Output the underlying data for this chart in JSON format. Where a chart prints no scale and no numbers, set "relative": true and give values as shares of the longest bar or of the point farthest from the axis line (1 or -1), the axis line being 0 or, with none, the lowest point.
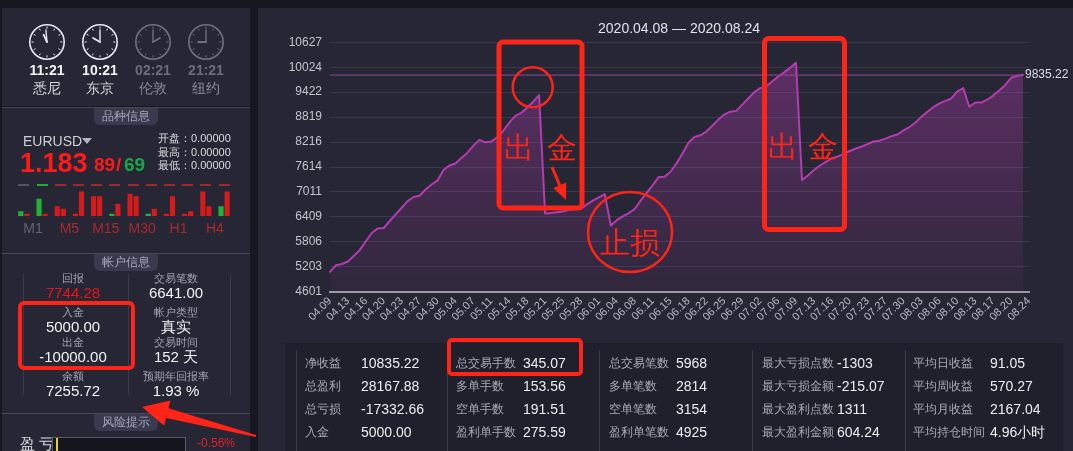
{
  "chart_data": [
    {
      "type": "area",
      "title": "2020.04.08 — 2020.08.24",
      "categories": [
        "04.09",
        null,
        null,
        "04.13",
        null,
        null,
        "04.16",
        null,
        null,
        "04.20",
        null,
        null,
        "04.23",
        null,
        null,
        "04.27",
        null,
        null,
        "04.30",
        null,
        null,
        "05.04",
        null,
        null,
        "05.07",
        null,
        null,
        "05.11",
        null,
        null,
        "05.14",
        null,
        null,
        "05.18",
        null,
        null,
        "05.21",
        null,
        null,
        "05.25",
        null,
        null,
        "05.28",
        null,
        null,
        "06.01",
        null,
        null,
        "06.04",
        null,
        null,
        "06.08",
        null,
        null,
        "06.11",
        null,
        null,
        "06.15",
        null,
        null,
        "06.18",
        null,
        null,
        "06.22",
        null,
        null,
        "06.25",
        null,
        null,
        "06.29",
        null,
        null,
        "07.02",
        null,
        null,
        "07.06",
        null,
        null,
        "07.09",
        null,
        null,
        "07.13",
        null,
        null,
        "07.16",
        null,
        null,
        "07.20",
        null,
        null,
        "07.23",
        null,
        null,
        "07.27",
        null,
        null,
        "07.30",
        null,
        null,
        "08.03",
        null,
        null,
        "08.06",
        null,
        null,
        "08.10",
        null,
        null,
        "08.13",
        null,
        null,
        "08.17",
        null,
        null,
        "08.20",
        null,
        null,
        "08.24"
      ],
      "values": [
        5080,
        5240,
        5270,
        5330,
        5470,
        5610,
        5820,
        6020,
        6130,
        6140,
        6310,
        6470,
        6630,
        6790,
        6890,
        6920,
        7070,
        7190,
        7290,
        7540,
        7650,
        7700,
        7830,
        7960,
        8130,
        8270,
        8210,
        8230,
        8330,
        8490,
        8680,
        8850,
        8920,
        9050,
        9190,
        9350,
        6490,
        6500,
        6520,
        6540,
        6580,
        6600,
        6600,
        6710,
        6800,
        6880,
        6960,
        6200,
        6330,
        6420,
        6500,
        6600,
        6800,
        6990,
        7170,
        7370,
        7380,
        7500,
        7700,
        7940,
        8200,
        8340,
        8380,
        8470,
        8610,
        8760,
        8880,
        8950,
        8970,
        9120,
        9270,
        9420,
        9520,
        9560,
        9680,
        9800,
        9900,
        10010,
        10130,
        7300,
        7410,
        7540,
        7650,
        7740,
        7820,
        7870,
        7930,
        8000,
        8060,
        8110,
        8170,
        8230,
        8250,
        8300,
        8360,
        8400,
        8500,
        8580,
        8690,
        8830,
        8950,
        9060,
        9150,
        9210,
        9270,
        9440,
        9520,
        9070,
        9170,
        9170,
        9240,
        9340,
        9460,
        9590,
        9770,
        9820,
        9840,
        null
      ],
      "color": "#b43cb0",
      "ylim": [
        4601,
        10627
      ],
      "yticks": [
        4601,
        5203,
        5806,
        6409,
        7011,
        7614,
        8216,
        8819,
        9422,
        10024,
        10627
      ],
      "grid": "y",
      "ref_lines": [
        {
          "axis": "y",
          "value": 9835.22,
          "label": "9835.22",
          "color": "#96489a"
        }
      ],
      "annotations": [
        "出金",
        "止损",
        "出金"
      ]
    },
    {
      "type": "other",
      "annotations": [
        "11:21",
        "悉尼",
        "10:21",
        "东京",
        "02:21",
        "伦敦",
        "21:21",
        "纽约",
        "品种信息",
        "EURUSD",
        "1.183",
        "89",
        "/",
        "69",
        "开盘：0.00000",
        "最高：0.00000",
        "最低：0.00000",
        "帐户信息",
        "回报",
        "7744.28",
        "交易笔数",
        "6641.00",
        "入金",
        "5000.00",
        "帐户类型",
        "真实",
        "出金",
        "-10000.00",
        "交易时间",
        "152 天",
        "余额",
        "7255.72",
        "预期年回报率",
        "1.93 %",
        "风险提示",
        "盈 亏",
        "-0.56%"
      ]
    },
    {
      "type": "bar",
      "relative": true,
      "categories": [
        null,
        null,
        "M1",
        null,
        null,
        null,
        null,
        null,
        "M5",
        null,
        null,
        null,
        null,
        null,
        "M15",
        null,
        null,
        null,
        null,
        null,
        "M30",
        null,
        null,
        null,
        null,
        null,
        "H1",
        null,
        null,
        null,
        null,
        null,
        "H4",
        null,
        null,
        null
      ],
      "values": [
        0.2,
        0.1,
        null,
        0.7,
        0.1,
        null,
        0.4,
        0.3,
        null,
        0.1,
        1,
        null,
        0.8,
        0.8,
        null,
        0.1,
        0.5,
        null,
        0.9,
        0.8,
        null,
        0.1,
        0.3,
        null,
        0.1,
        0.8,
        null,
        0.1,
        0.2,
        null,
        1,
        0.4,
        null,
        0.4,
        1,
        null
      ],
      "colors": [
        "#22b23c",
        "#d41c1c",
        null,
        "#22b23c",
        "#d41c1c",
        null,
        "#d41c1c",
        "#d41c1c",
        null,
        "#d41c1c",
        "#d41c1c",
        null,
        "#d41c1c",
        "#d41c1c",
        null,
        "#22b23c",
        "#d41c1c",
        null,
        "#d41c1c",
        "#d41c1c",
        null,
        "#22b23c",
        "#d41c1c",
        null,
        "#d41c1c",
        "#d41c1c",
        null,
        "#d41c1c",
        "#d41c1c",
        null,
        "#d41c1c",
        "#d41c1c",
        null,
        "#22b23c",
        "#d41c1c",
        null
      ]
    },
    {
      "type": "other",
      "annotations": [
        "净收益",
        "10835.22",
        "总盈利",
        "28167.88",
        "总亏损",
        "-17332.66",
        "入金",
        "5000.00",
        "总交易手数",
        "345.07",
        "多单手数",
        "153.56",
        "空单手数",
        "191.51",
        "盈利单手数",
        "275.59",
        "总交易笔数",
        "5968",
        "多单笔数",
        "2814",
        "空单笔数",
        "3154",
        "盈利单笔数",
        "4925",
        "最大亏损点数",
        "-1303",
        "最大亏损金额",
        "-215.07",
        "最大盈利点数",
        "1311",
        "最大盈利金额",
        "604.24",
        "平均日收益",
        "91.05",
        "平均周收益",
        "570.27",
        "平均月收益",
        "2167.04",
        "平均持仓时间",
        "4.96小时"
      ]
    }
  ]
}
